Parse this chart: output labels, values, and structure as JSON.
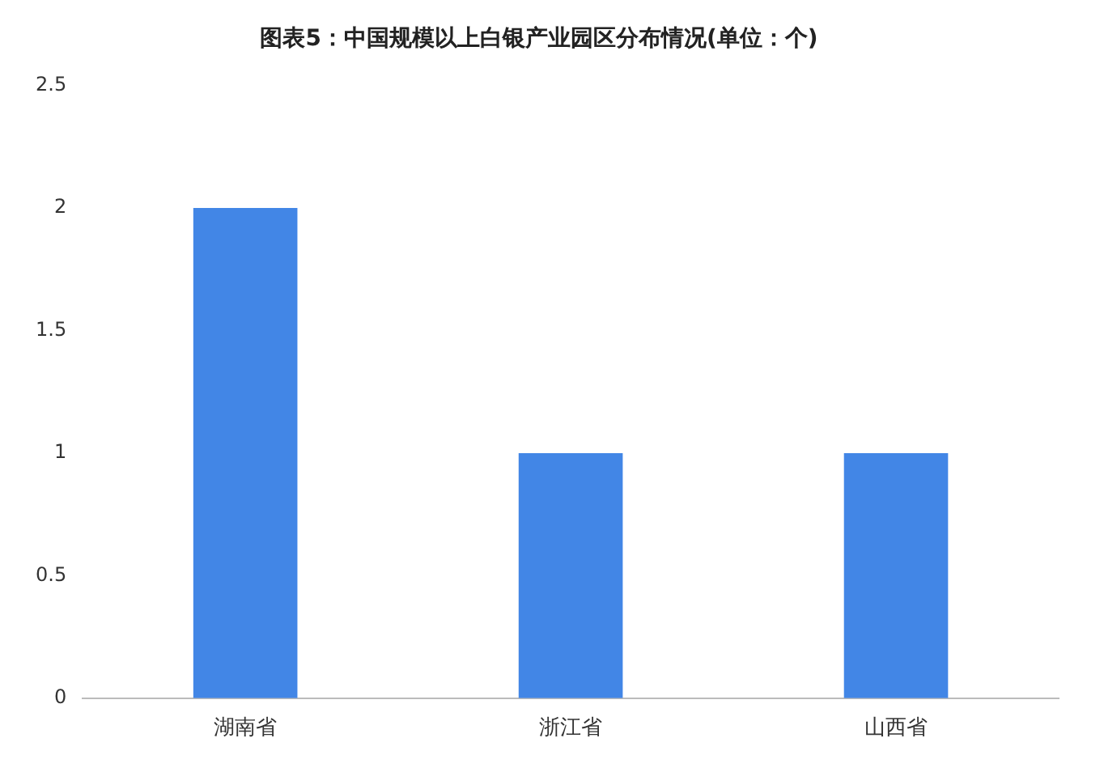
{
  "chart_data": {
    "type": "bar",
    "title": "图表5：中国规模以上白银产业园区分布情况(单位：个)",
    "categories": [
      "湖南省",
      "浙江省",
      "山西省"
    ],
    "values": [
      2,
      1,
      1
    ],
    "color": "#4286e6",
    "ylim": [
      0,
      2.5
    ],
    "yticks": [
      0,
      0.5,
      1,
      1.5,
      2,
      2.5
    ],
    "grid": false,
    "legend": false
  }
}
